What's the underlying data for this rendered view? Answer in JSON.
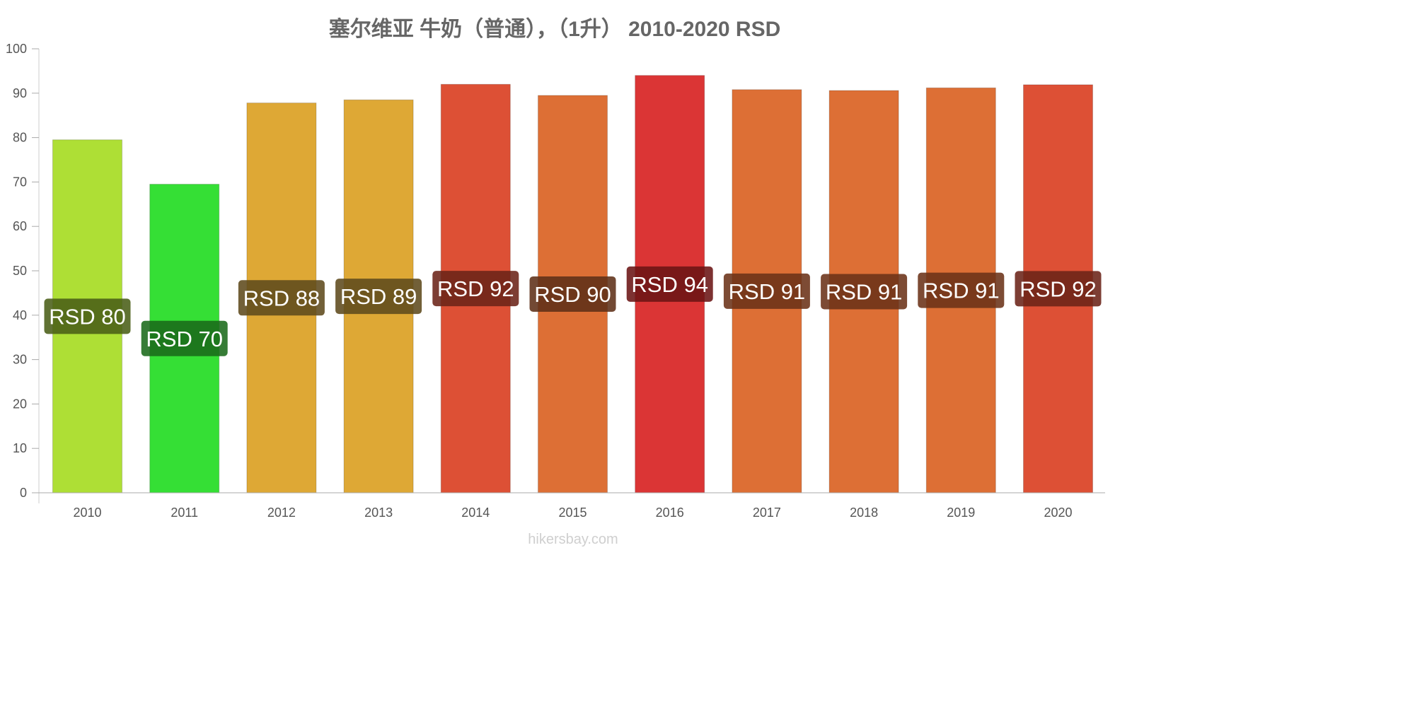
{
  "chart_data": {
    "type": "bar",
    "title": "塞尔维亚 牛奶（普通），（1升） 2010-2020 RSD",
    "xlabel": "",
    "ylabel": "",
    "categories": [
      "2010",
      "2011",
      "2012",
      "2013",
      "2014",
      "2015",
      "2016",
      "2017",
      "2018",
      "2019",
      "2020"
    ],
    "values": [
      79.5,
      69.5,
      87.8,
      88.5,
      92.0,
      89.5,
      94.0,
      90.8,
      90.6,
      91.2,
      91.9
    ],
    "data_labels": [
      "RSD 80",
      "RSD 70",
      "RSD 88",
      "RSD 89",
      "RSD 92",
      "RSD 90",
      "RSD 94",
      "RSD 91",
      "RSD 91",
      "RSD 91",
      "RSD 92"
    ],
    "bar_colors": [
      "#aedf35",
      "#35df35",
      "#dea835",
      "#dea835",
      "#dd5035",
      "#dd6f35",
      "#db3535",
      "#dd6f35",
      "#dd6f35",
      "#dd6f35",
      "#dd5035"
    ],
    "label_box_colors": [
      "#4a5e17",
      "#1a6a1a",
      "#5e4a1c",
      "#5e4a1c",
      "#6b2318",
      "#5e3018",
      "#6b1414",
      "#6b3218",
      "#6b3218",
      "#6b3218",
      "#6b2318"
    ],
    "ylim": [
      0,
      100
    ],
    "yticks": [
      0,
      10,
      20,
      30,
      40,
      50,
      60,
      70,
      80,
      90,
      100
    ],
    "grid": false,
    "legend": "none"
  },
  "watermark": "hikersbay.com"
}
